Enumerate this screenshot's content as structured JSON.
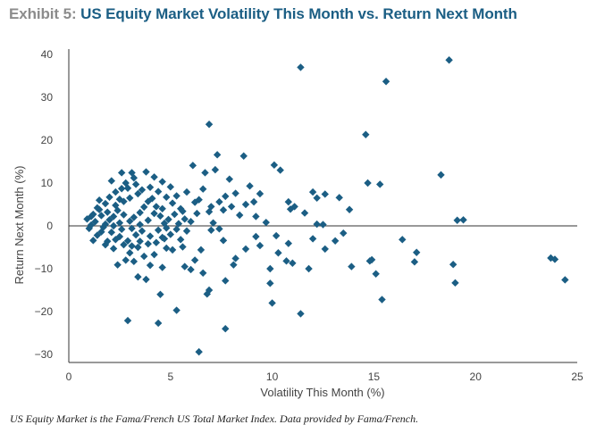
{
  "header": {
    "exhibit": "Exhibit 5:",
    "title": "US Equity Market Volatility This Month vs. Return Next Month"
  },
  "footnote": "US Equity Market is the Fama/French US Total Market Index. Data provided by Fama/French.",
  "colors": {
    "marker": "#1b5e84",
    "axis": "#333333",
    "zero_line": "#333333"
  },
  "chart_data": {
    "type": "scatter",
    "title": "US Equity Market Volatility This Month vs. Return Next Month",
    "xlabel": "Volatility This Month (%)",
    "ylabel": "Return Next Month (%)",
    "xlim": [
      0,
      25
    ],
    "ylim": [
      -30,
      40
    ],
    "xticks": [
      0,
      5,
      10,
      15,
      20,
      25
    ],
    "yticks": [
      -30,
      -20,
      -10,
      0,
      10,
      20,
      30,
      40
    ],
    "grid": false,
    "marker": "diamond",
    "zero_line": true,
    "points": [
      [
        11.4,
        37.0
      ],
      [
        15.6,
        33.7
      ],
      [
        18.7,
        38.7
      ],
      [
        6.9,
        23.7
      ],
      [
        14.6,
        21.3
      ],
      [
        7.3,
        16.6
      ],
      [
        8.6,
        16.3
      ],
      [
        10.1,
        14.2
      ],
      [
        10.4,
        13.0
      ],
      [
        6.1,
        14.1
      ],
      [
        6.7,
        12.4
      ],
      [
        7.2,
        13.1
      ],
      [
        14.7,
        10.0
      ],
      [
        15.3,
        9.7
      ],
      [
        18.3,
        11.9
      ],
      [
        12.0,
        7.9
      ],
      [
        12.6,
        7.4
      ],
      [
        13.3,
        6.6
      ],
      [
        9.4,
        7.5
      ],
      [
        10.8,
        5.6
      ],
      [
        11.1,
        4.5
      ],
      [
        11.6,
        3.0
      ],
      [
        13.8,
        3.8
      ],
      [
        12.2,
        6.5
      ],
      [
        19.1,
        1.3
      ],
      [
        19.4,
        1.4
      ],
      [
        10.9,
        3.9
      ],
      [
        9.2,
        2.2
      ],
      [
        8.7,
        5.0
      ],
      [
        8.2,
        7.6
      ],
      [
        7.7,
        6.9
      ],
      [
        8.4,
        2.5
      ],
      [
        9.7,
        0.8
      ],
      [
        12.2,
        0.4
      ],
      [
        12.5,
        0.3
      ],
      [
        7.6,
        3.7
      ],
      [
        5.8,
        7.9
      ],
      [
        6.4,
        6.1
      ],
      [
        8.0,
        4.5
      ],
      [
        6.3,
        2.9
      ],
      [
        7.0,
        4.5
      ],
      [
        9.1,
        5.6
      ],
      [
        13.5,
        -1.7
      ],
      [
        16.4,
        -3.2
      ],
      [
        17.1,
        -6.2
      ],
      [
        14.8,
        -8.2
      ],
      [
        14.9,
        -7.9
      ],
      [
        17.0,
        -8.4
      ],
      [
        15.1,
        -11.2
      ],
      [
        18.9,
        -9.0
      ],
      [
        19.0,
        -13.3
      ],
      [
        23.7,
        -7.5
      ],
      [
        23.9,
        -7.8
      ],
      [
        24.4,
        -12.6
      ],
      [
        15.4,
        -17.2
      ],
      [
        11.4,
        -20.5
      ],
      [
        9.9,
        -13.4
      ],
      [
        10.0,
        -18.0
      ],
      [
        10.7,
        -8.2
      ],
      [
        11.8,
        -10.0
      ],
      [
        11.0,
        -8.7
      ],
      [
        12.6,
        -5.4
      ],
      [
        13.9,
        -9.5
      ],
      [
        12.0,
        -3.0
      ],
      [
        13.1,
        -3.5
      ],
      [
        10.3,
        -6.3
      ],
      [
        9.9,
        -10.0
      ],
      [
        10.8,
        -4.1
      ],
      [
        10.2,
        -2.3
      ],
      [
        9.4,
        -4.6
      ],
      [
        9.2,
        -2.5
      ],
      [
        8.7,
        -5.4
      ],
      [
        8.2,
        -7.6
      ],
      [
        8.1,
        -9.1
      ],
      [
        7.6,
        -3.4
      ],
      [
        7.7,
        -12.8
      ],
      [
        6.8,
        -15.9
      ],
      [
        6.9,
        -15.0
      ],
      [
        6.6,
        -11.0
      ],
      [
        6.0,
        -10.2
      ],
      [
        5.7,
        -9.5
      ],
      [
        7.7,
        -24.0
      ],
      [
        6.4,
        -29.4
      ],
      [
        5.3,
        -19.7
      ],
      [
        4.4,
        -22.7
      ],
      [
        2.9,
        -22.1
      ],
      [
        4.5,
        -16.0
      ],
      [
        3.8,
        -12.5
      ],
      [
        4.0,
        -9.2
      ],
      [
        3.4,
        -11.9
      ],
      [
        2.4,
        -9.1
      ],
      [
        3.7,
        -7.1
      ],
      [
        6.2,
        -8.0
      ],
      [
        6.5,
        -5.6
      ],
      [
        5.5,
        -3.2
      ],
      [
        5.6,
        -4.9
      ],
      [
        7.0,
        -1.0
      ],
      [
        7.4,
        -0.7
      ],
      [
        7.1,
        0.7
      ],
      [
        6.9,
        3.3
      ],
      [
        5.5,
        4.0
      ],
      [
        5.7,
        1.6
      ],
      [
        5.8,
        -1.2
      ],
      [
        5.4,
        0.5
      ],
      [
        4.6,
        -2.7
      ],
      [
        4.8,
        -5.2
      ],
      [
        5.1,
        -5.6
      ],
      [
        4.2,
        -6.7
      ],
      [
        4.6,
        -9.7
      ],
      [
        3.2,
        -8.3
      ],
      [
        2.8,
        -8.0
      ],
      [
        3.4,
        -5.0
      ],
      [
        3.0,
        -6.3
      ],
      [
        2.2,
        -5.3
      ],
      [
        1.9,
        -3.6
      ],
      [
        1.2,
        -3.4
      ],
      [
        1.6,
        -1.4
      ],
      [
        1.1,
        0.2
      ],
      [
        0.9,
        1.6
      ],
      [
        1.2,
        2.7
      ],
      [
        1.5,
        3.8
      ],
      [
        1.8,
        5.2
      ],
      [
        2.0,
        6.7
      ],
      [
        2.3,
        7.9
      ],
      [
        2.6,
        8.7
      ],
      [
        2.8,
        10.0
      ],
      [
        3.2,
        11.2
      ],
      [
        3.8,
        12.6
      ],
      [
        4.2,
        11.4
      ],
      [
        4.6,
        10.3
      ],
      [
        5.0,
        9.1
      ],
      [
        5.3,
        7.0
      ],
      [
        2.1,
        10.5
      ],
      [
        2.6,
        12.4
      ],
      [
        3.1,
        12.4
      ],
      [
        3.0,
        1.1
      ],
      [
        3.2,
        2.0
      ],
      [
        3.5,
        3.1
      ],
      [
        3.7,
        4.4
      ],
      [
        3.9,
        5.7
      ],
      [
        4.1,
        6.4
      ],
      [
        4.3,
        4.5
      ],
      [
        4.5,
        2.3
      ],
      [
        4.7,
        0.6
      ],
      [
        4.9,
        1.5
      ],
      [
        2.5,
        0.7
      ],
      [
        2.7,
        2.6
      ],
      [
        2.4,
        3.6
      ],
      [
        2.2,
        2.2
      ],
      [
        2.0,
        1.4
      ],
      [
        1.8,
        0.4
      ],
      [
        1.6,
        2.4
      ],
      [
        1.4,
        4.2
      ],
      [
        1.3,
        1.0
      ],
      [
        1.7,
        -0.3
      ],
      [
        2.1,
        -1.5
      ],
      [
        2.5,
        -2.5
      ],
      [
        2.9,
        -3.5
      ],
      [
        3.3,
        -2.1
      ],
      [
        3.6,
        -1.2
      ],
      [
        4.0,
        -2.4
      ],
      [
        4.4,
        -1.0
      ],
      [
        4.8,
        -0.5
      ],
      [
        5.2,
        2.7
      ],
      [
        5.0,
        -2.0
      ],
      [
        2.3,
        4.8
      ],
      [
        2.7,
        5.7
      ],
      [
        3.0,
        6.5
      ],
      [
        3.4,
        7.5
      ],
      [
        3.6,
        8.4
      ],
      [
        4.0,
        9.0
      ],
      [
        4.4,
        8.0
      ],
      [
        4.8,
        6.7
      ],
      [
        5.1,
        5.3
      ],
      [
        2.9,
        8.8
      ],
      [
        3.3,
        9.7
      ],
      [
        2.5,
        6.2
      ],
      [
        1.9,
        3.2
      ],
      [
        2.2,
        0.0
      ],
      [
        2.6,
        -0.8
      ],
      [
        3.1,
        -0.6
      ],
      [
        3.5,
        0.3
      ],
      [
        3.9,
        1.3
      ],
      [
        4.2,
        2.9
      ],
      [
        4.6,
        4.0
      ],
      [
        1.5,
        6.0
      ],
      [
        1.1,
        2.2
      ],
      [
        1.0,
        -0.6
      ],
      [
        1.4,
        -2.2
      ],
      [
        1.8,
        -4.4
      ],
      [
        2.3,
        -3.2
      ],
      [
        2.7,
        -4.4
      ],
      [
        3.1,
        -4.7
      ],
      [
        3.5,
        -3.6
      ],
      [
        3.9,
        -4.2
      ],
      [
        4.3,
        -3.9
      ],
      [
        4.7,
        -3.0
      ],
      [
        5.3,
        -0.8
      ],
      [
        5.6,
        3.4
      ],
      [
        6.0,
        1.0
      ],
      [
        6.2,
        5.5
      ],
      [
        6.6,
        8.6
      ],
      [
        7.4,
        5.6
      ],
      [
        8.9,
        9.3
      ],
      [
        7.9,
        10.9
      ]
    ]
  }
}
